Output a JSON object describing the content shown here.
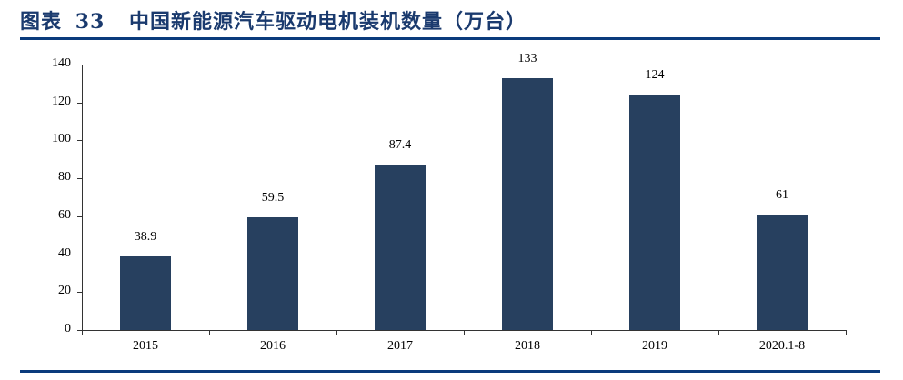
{
  "header": {
    "figure_label": "图表",
    "figure_number": "33",
    "title": "中国新能源汽车驱动电机装机数量（万台）"
  },
  "chart_data": {
    "type": "bar",
    "title": "中国新能源汽车驱动电机装机数量（万台）",
    "categories": [
      "2015",
      "2016",
      "2017",
      "2018",
      "2019",
      "2020.1-8"
    ],
    "values": [
      38.9,
      59.5,
      87.4,
      133,
      124,
      61
    ],
    "value_labels": [
      "38.9",
      "59.5",
      "87.4",
      "133",
      "124",
      "61"
    ],
    "xlabel": "",
    "ylabel": "万台",
    "ylim": [
      0,
      140
    ],
    "yticks": [
      0,
      20,
      40,
      60,
      80,
      100,
      120,
      140
    ],
    "grid": false,
    "legend": null,
    "bar_color": "#27405f"
  },
  "colors": {
    "title": "#1a3a6e",
    "rule": "#0a3b7c",
    "bar": "#27405f"
  }
}
